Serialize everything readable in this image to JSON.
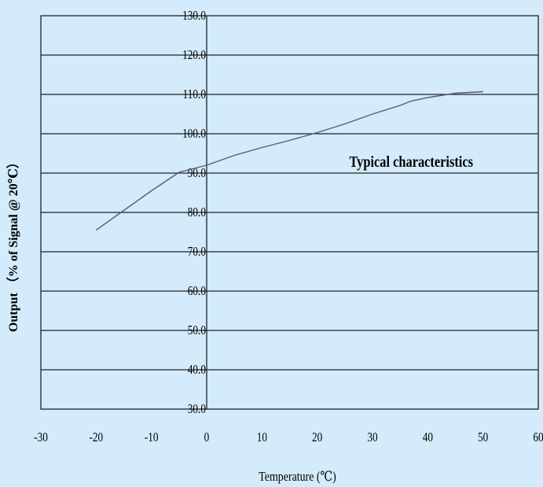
{
  "chart_data": {
    "type": "line",
    "title": "",
    "xlabel": "Temperature (℃)",
    "ylabel": "Output （% of Signal @ 20℃）",
    "xlim": [
      -30,
      60
    ],
    "ylim": [
      30,
      130
    ],
    "x_ticks": [
      "-30",
      "-20",
      "-10",
      "0",
      "10",
      "20",
      "30",
      "40",
      "50",
      "60"
    ],
    "y_ticks": [
      "30.0",
      "40.0",
      "50.0",
      "60.0",
      "70.0",
      "80.0",
      "90.0",
      "100.0",
      "110.0",
      "120.0",
      "130.0"
    ],
    "grid": "horizontal",
    "series": [
      {
        "color": "#5a5a78",
        "x": [
          -20,
          -15,
          -10,
          -5,
          0,
          5,
          10,
          15,
          20,
          25,
          30,
          35,
          37,
          40,
          45,
          50
        ],
        "y": [
          75.5,
          80.5,
          85.5,
          90.2,
          92.0,
          94.5,
          96.5,
          98.3,
          100.3,
          102.5,
          105.0,
          107.2,
          108.3,
          109.2,
          110.3,
          110.7
        ]
      }
    ],
    "annotations": [
      {
        "text": "Typical characteristics",
        "x": 37,
        "y": 93
      }
    ]
  }
}
